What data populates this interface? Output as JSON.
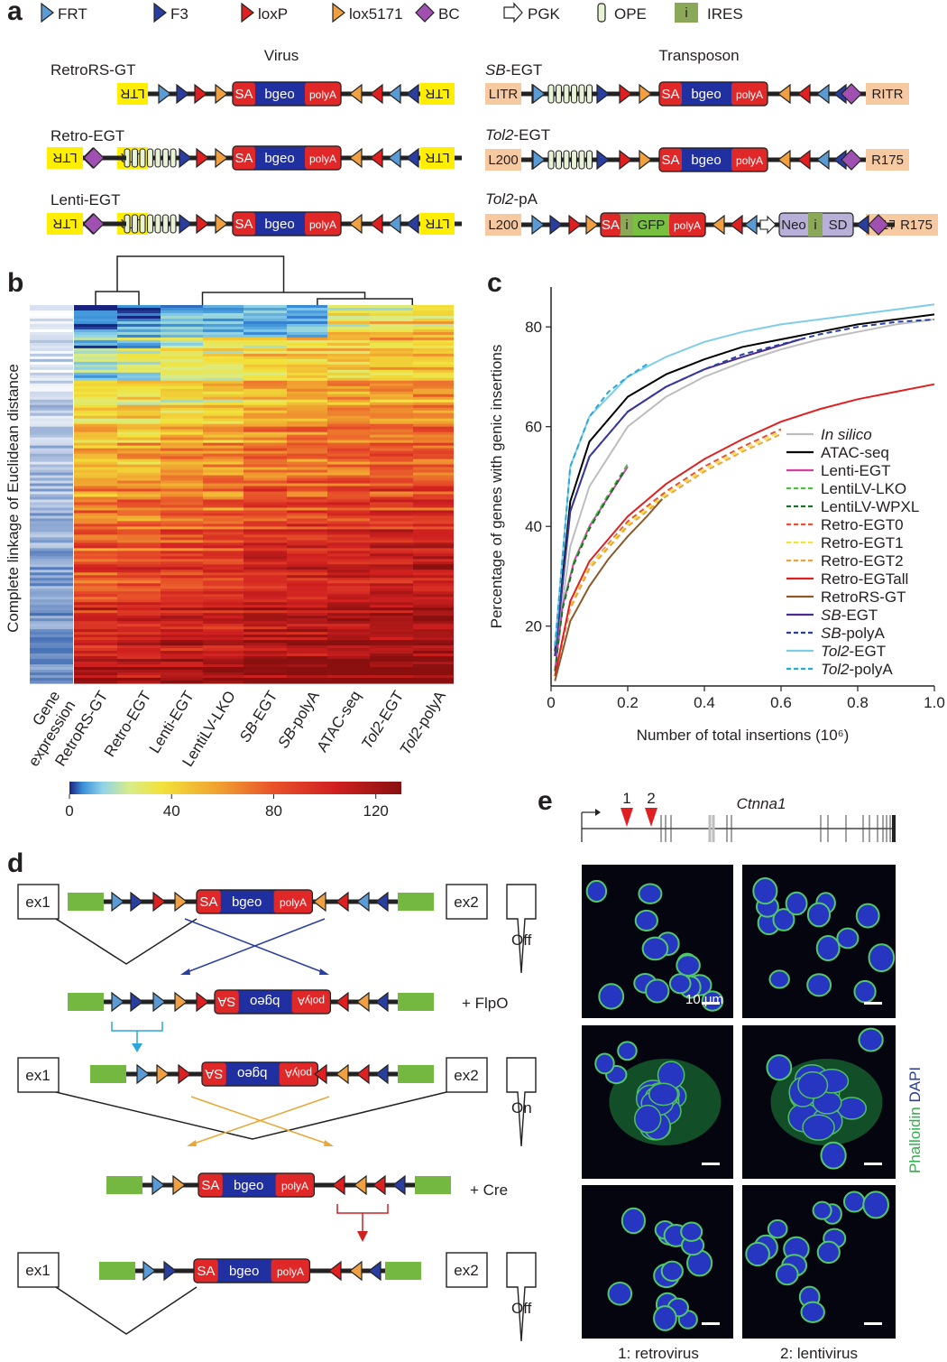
{
  "panels": {
    "a": "a",
    "b": "b",
    "c": "c",
    "d": "d",
    "e": "e"
  },
  "legend_a": [
    {
      "name": "FRT",
      "shape": "tri-right",
      "color": "#5b9bd5"
    },
    {
      "name": "F3",
      "shape": "tri-right",
      "color": "#2a3ea0"
    },
    {
      "name": "loxP",
      "shape": "tri-right",
      "color": "#e02020"
    },
    {
      "name": "lox5171",
      "shape": "tri-right",
      "color": "#f0a040"
    },
    {
      "name": "BC",
      "shape": "diamond",
      "color": "#a050b0"
    },
    {
      "name": "PGK",
      "shape": "arrow-box",
      "color": "#ffffff"
    },
    {
      "name": "OPE",
      "shape": "ope",
      "color": "#e8f3d6"
    },
    {
      "name": "IRES",
      "shape": "box",
      "color": "#8aa858",
      "text": "i"
    }
  ],
  "a": {
    "virus_header": "Virus",
    "transposon_header": "Transposon",
    "virus": [
      {
        "name": "RetroRS-GT",
        "left": "LTR",
        "right": "LTR"
      },
      {
        "name": "Retro-EGT",
        "left": "LTR",
        "right": "LTR"
      },
      {
        "name": "Lenti-EGT",
        "left": "LTR",
        "right": "LTR"
      }
    ],
    "transposon": [
      {
        "name_it": "SB",
        "name_rest": "-EGT",
        "left": "LITR",
        "right": "RITR"
      },
      {
        "name_it": "Tol2",
        "name_rest": "-EGT",
        "left": "L200",
        "right": "R175"
      },
      {
        "name_it": "Tol2",
        "name_rest": "-pA",
        "left": "L200",
        "right": "R175"
      }
    ],
    "cassette": {
      "sa": "SA",
      "bgeo": "bgeo",
      "polya": "polyA",
      "gfp": "GFP",
      "ires": "i",
      "neo": "Neo",
      "sd": "SD"
    }
  },
  "b": {
    "ylabel": "Complete linkage of Euclidean distance",
    "columns": [
      {
        "label": "Gene\nexpression",
        "italic_part": ""
      },
      {
        "label": "RetroRS-GT"
      },
      {
        "label": "Retro-EGT"
      },
      {
        "label": "Lenti-EGT"
      },
      {
        "label": "LentiLV-LKO"
      },
      {
        "label_it": "SB",
        "label": "-EGT"
      },
      {
        "label_it": "SB",
        "label": "-polyA"
      },
      {
        "label": "ATAC-seq"
      },
      {
        "label_it": "Tol2",
        "label": "-EGT"
      },
      {
        "label_it": "Tol2",
        "label": "-polyA"
      }
    ],
    "colorbar": {
      "ticks": [
        "0",
        "40",
        "80",
        "120"
      ],
      "range": [
        0,
        130
      ]
    }
  },
  "chart_data": {
    "type": "line",
    "xlabel": "Number of total insertions (10⁶)",
    "ylabel": "Percentage of genes with genic insertions",
    "xlim": [
      0,
      1.0
    ],
    "ylim": [
      8,
      88
    ],
    "xticks": [
      "0",
      "0.2",
      "0.4",
      "0.6",
      "0.8",
      "1.0"
    ],
    "yticks": [
      "20",
      "40",
      "60",
      "80"
    ],
    "series": [
      {
        "name": "In silico",
        "italic": true,
        "color": "#bdbdbd",
        "dash": false,
        "x": [
          0.01,
          0.05,
          0.1,
          0.2,
          0.3,
          0.4,
          0.5,
          0.6,
          0.7,
          0.8,
          0.9,
          1.0
        ],
        "y": [
          14,
          36,
          48,
          60,
          66,
          70,
          73,
          75.5,
          77.5,
          79,
          80.5,
          81.5
        ]
      },
      {
        "name": "ATAC-seq",
        "color": "#000000",
        "dash": false,
        "x": [
          0.01,
          0.05,
          0.1,
          0.2,
          0.3,
          0.4,
          0.5,
          0.6,
          0.7,
          0.8,
          0.9,
          1.0
        ],
        "y": [
          15,
          45,
          57,
          66,
          70.5,
          73.5,
          76,
          77.5,
          79,
          80.5,
          81.5,
          82.5
        ]
      },
      {
        "name": "Lenti-EGT",
        "color": "#d63fa0",
        "dash": false,
        "x": [
          0.01,
          0.03,
          0.06,
          0.1,
          0.15,
          0.2
        ],
        "y": [
          11,
          24,
          33,
          40,
          46,
          52
        ]
      },
      {
        "name": "LentiLV-LKO",
        "color": "#55b848",
        "dash": true,
        "x": [
          0.01,
          0.03,
          0.06,
          0.1,
          0.15,
          0.2
        ],
        "y": [
          11,
          24,
          33,
          40,
          46.5,
          52.5
        ]
      },
      {
        "name": "LentiLV-WPXL",
        "color": "#1f6e2c",
        "dash": true,
        "x": [
          0.01,
          0.03,
          0.06,
          0.1,
          0.15,
          0.19
        ],
        "y": [
          11,
          23.5,
          32.5,
          39.5,
          46,
          51
        ]
      },
      {
        "name": "Retro-EGT0",
        "color": "#e8503a",
        "dash": true,
        "x": [
          0.01,
          0.05,
          0.1,
          0.2,
          0.3,
          0.4,
          0.5,
          0.6
        ],
        "y": [
          10,
          24,
          32,
          41,
          47,
          52,
          56,
          59.5
        ]
      },
      {
        "name": "Retro-EGT1",
        "color": "#f2e23a",
        "dash": true,
        "x": [
          0.01,
          0.05,
          0.1,
          0.2,
          0.3,
          0.4,
          0.5,
          0.6
        ],
        "y": [
          10,
          24,
          32,
          40.5,
          46.5,
          51.5,
          55.5,
          59
        ]
      },
      {
        "name": "Retro-EGT2",
        "color": "#f0a040",
        "dash": true,
        "x": [
          0.01,
          0.05,
          0.1,
          0.2,
          0.3,
          0.4,
          0.5,
          0.6
        ],
        "y": [
          10,
          23.5,
          31.5,
          40,
          46,
          51,
          55,
          58.5
        ]
      },
      {
        "name": "Retro-EGTall",
        "color": "#e02020",
        "dash": false,
        "x": [
          0.01,
          0.05,
          0.1,
          0.2,
          0.3,
          0.4,
          0.5,
          0.6,
          0.7,
          0.8,
          0.9,
          1.0
        ],
        "y": [
          10,
          25,
          33,
          42,
          48.5,
          53.5,
          57.5,
          61,
          63.5,
          65.5,
          67,
          68.5
        ]
      },
      {
        "name": "RetroRS-GT",
        "color": "#8b5a2b",
        "dash": false,
        "x": [
          0.01,
          0.05,
          0.1,
          0.15,
          0.2,
          0.25,
          0.29
        ],
        "y": [
          9,
          21,
          28,
          33.5,
          38,
          42,
          45.5
        ]
      },
      {
        "name_it": "SB",
        "name": "-EGT",
        "color": "#4b2a91",
        "dash": false,
        "x": [
          0.01,
          0.05,
          0.1,
          0.2,
          0.3,
          0.4,
          0.5,
          0.65
        ],
        "y": [
          14,
          43,
          54,
          63,
          68,
          71.5,
          74,
          77.5
        ]
      },
      {
        "name_it": "SB",
        "name": "-polyA",
        "color": "#2a3ea0",
        "dash": true,
        "x": [
          0.01,
          0.05,
          0.1,
          0.2,
          0.3,
          0.4,
          0.5,
          0.6,
          0.7,
          0.8,
          0.9,
          1.0
        ],
        "y": [
          14,
          43,
          54,
          63,
          68,
          71.5,
          74.5,
          76.5,
          78.5,
          80,
          81,
          81.5
        ]
      },
      {
        "name_it": "Tol2",
        "name": "-EGT",
        "color": "#7fcce8",
        "dash": false,
        "x": [
          0.01,
          0.05,
          0.1,
          0.2,
          0.3,
          0.4,
          0.5,
          0.6,
          0.7,
          0.8,
          0.9,
          1.0
        ],
        "y": [
          16,
          52,
          62,
          70,
          74,
          77,
          79,
          80.5,
          81.5,
          82.5,
          83.5,
          84.5
        ]
      },
      {
        "name_it": "Tol2",
        "name": "-polyA",
        "color": "#2aa7d8",
        "dash": true,
        "x": [
          0.01,
          0.05,
          0.1,
          0.15,
          0.2,
          0.25
        ],
        "y": [
          16,
          52,
          62,
          67,
          70,
          72.5
        ]
      }
    ]
  },
  "d": {
    "ex1": "ex1",
    "ex2": "ex2",
    "off": "Off",
    "on": "On",
    "flpo": "+ FlpO",
    "cre": "+ Cre",
    "sa": "SA",
    "bgeo": "bgeo",
    "polya": "polyA"
  },
  "e": {
    "gene": "Ctnna1",
    "site1": "1",
    "site2": "2",
    "scale": "10 μm",
    "stain_green": "Phalloidin",
    "stain_blue": "DAPI",
    "bottom_left": "1: retrovirus",
    "bottom_right": "2: lentivirus"
  }
}
